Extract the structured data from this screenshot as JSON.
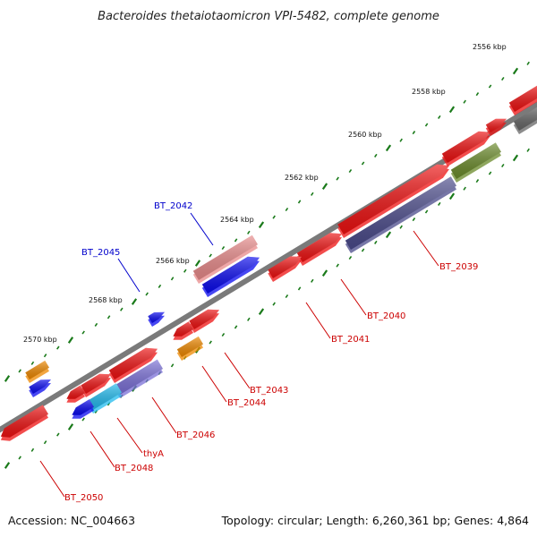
{
  "title": "Bacteroides thetaiotaomicron VPI-5482, complete genome",
  "footer": {
    "accession": "Accession: NC_004663",
    "summary": "Topology: circular; Length: 6,260,361 bp; Genes: 4,864"
  },
  "ruler": {
    "tick_labels": [
      "2556 kbp",
      "2558 kbp",
      "2560 kbp",
      "2562 kbp",
      "2564 kbp",
      "2566 kbp",
      "2568 kbp",
      "2570 kbp"
    ]
  },
  "colors": {
    "backbone": "#7a7a7a",
    "gene_red": "#ee1111",
    "gene_blue": "#0a0aee",
    "gene_orange": "#ee8800",
    "gene_pink": "#e88a8a",
    "gene_cyan": "#22bbee",
    "gene_purple": "#7a6fd6",
    "gene_navy": "#4a4a8a",
    "gene_olive": "#6a8a2a",
    "gene_gray": "#666666",
    "tick_green": "#1a7a1a",
    "label_blue": "#0000cc",
    "label_red": "#cc0000"
  },
  "genes": [
    {
      "label": "BT_2039",
      "color": "label_red"
    },
    {
      "label": "BT_2040",
      "color": "label_red"
    },
    {
      "label": "BT_2041",
      "color": "label_red"
    },
    {
      "label": "BT_2042",
      "color": "label_blue"
    },
    {
      "label": "BT_2043",
      "color": "label_red"
    },
    {
      "label": "BT_2044",
      "color": "label_red"
    },
    {
      "label": "BT_2045",
      "color": "label_blue"
    },
    {
      "label": "BT_2046",
      "color": "label_red"
    },
    {
      "label": "thyA",
      "color": "label_red"
    },
    {
      "label": "BT_2048",
      "color": "label_red"
    },
    {
      "label": "BT_2050",
      "color": "label_red"
    }
  ]
}
